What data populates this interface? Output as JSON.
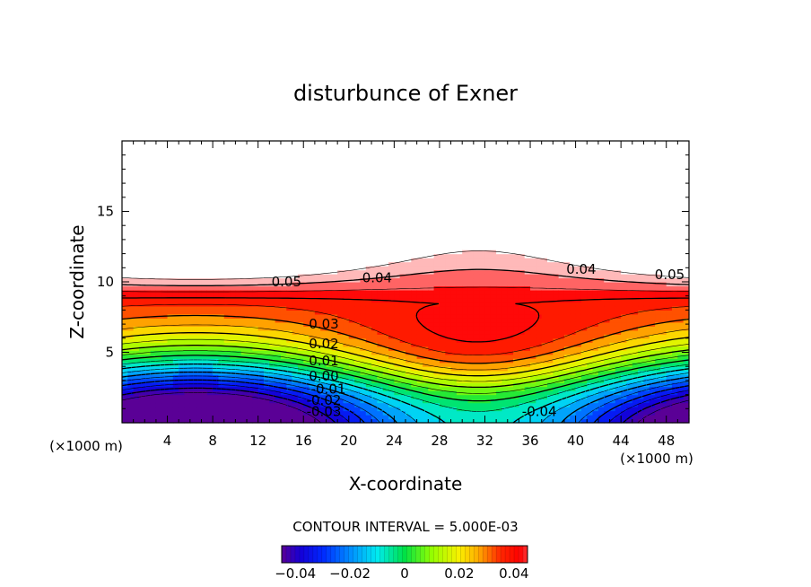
{
  "chart_data": {
    "type": "heatmap",
    "title": "disturbunce of Exner",
    "xlabel": "X-coordinate",
    "ylabel": "Z-coordinate",
    "x_unit_left": "(×1000 m)",
    "x_unit_right": "(×1000 m)",
    "xlim": [
      0,
      50
    ],
    "ylim": [
      0,
      20
    ],
    "x_ticks": [
      4,
      8,
      12,
      16,
      20,
      24,
      28,
      32,
      36,
      40,
      44,
      48
    ],
    "y_ticks": [
      5,
      10,
      15
    ],
    "contour_interval_text": "CONTOUR INTERVAL = 5.000E-03",
    "colorbar": {
      "range": [
        -0.045,
        0.045
      ],
      "ticks": [
        {
          "value": -0.04,
          "label": "−0.04"
        },
        {
          "value": -0.02,
          "label": "−0.02"
        },
        {
          "value": 0,
          "label": "0"
        },
        {
          "value": 0.02,
          "label": "0.02"
        },
        {
          "value": 0.04,
          "label": "0.04"
        }
      ]
    },
    "contour_labels": [
      {
        "text": "0.05",
        "x": 14.5,
        "z": 10.0
      },
      {
        "text": "0.04",
        "x": 22.5,
        "z": 10.3
      },
      {
        "text": "0.04",
        "x": 40.5,
        "z": 10.9
      },
      {
        "text": "0.05",
        "x": 48.3,
        "z": 10.5
      },
      {
        "text": "0.03",
        "x": 17.8,
        "z": 7.0
      },
      {
        "text": "0.02",
        "x": 17.8,
        "z": 5.6
      },
      {
        "text": "0.01",
        "x": 17.8,
        "z": 4.4
      },
      {
        "text": "0.00",
        "x": 17.8,
        "z": 3.3
      },
      {
        "text": "-0.01",
        "x": 18.2,
        "z": 2.4
      },
      {
        "text": "-0.02",
        "x": 17.8,
        "z": 1.6
      },
      {
        "text": "-0.03",
        "x": 17.8,
        "z": 0.8
      },
      {
        "text": "-0.04",
        "x": 36.8,
        "z": 0.8
      }
    ]
  }
}
